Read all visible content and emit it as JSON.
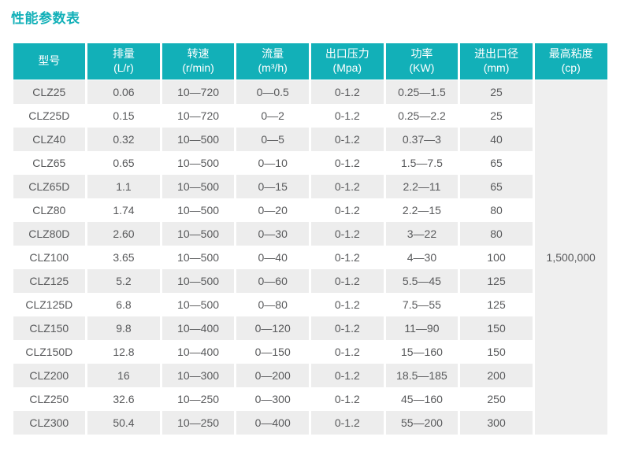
{
  "page": {
    "title": "性能参数表"
  },
  "colors": {
    "accent": "#12b0b8",
    "header_text": "#ffffff",
    "stripe": "#ededed",
    "merged_cell_bg": "#efefef",
    "body_text": "#58595b"
  },
  "table": {
    "columns": [
      {
        "label": "型号",
        "sub": ""
      },
      {
        "label": "排量",
        "sub": "(L/r)"
      },
      {
        "label": "转速",
        "sub": "(r/min)"
      },
      {
        "label": "流量",
        "sub": "(m³/h)"
      },
      {
        "label": "出口压力",
        "sub": "(Mpa)"
      },
      {
        "label": "功率",
        "sub": "(KW)"
      },
      {
        "label": "进出口径",
        "sub": "(mm)"
      },
      {
        "label": "最高粘度",
        "sub": "(cp)"
      }
    ],
    "rows": [
      [
        "CLZ25",
        "0.06",
        "10—720",
        "0—0.5",
        "0-1.2",
        "0.25—1.5",
        "25"
      ],
      [
        "CLZ25D",
        "0.15",
        "10—720",
        "0—2",
        "0-1.2",
        "0.25—2.2",
        "25"
      ],
      [
        "CLZ40",
        "0.32",
        "10—500",
        "0—5",
        "0-1.2",
        "0.37—3",
        "40"
      ],
      [
        "CLZ65",
        "0.65",
        "10—500",
        "0—10",
        "0-1.2",
        "1.5—7.5",
        "65"
      ],
      [
        "CLZ65D",
        "1.1",
        "10—500",
        "0—15",
        "0-1.2",
        "2.2—11",
        "65"
      ],
      [
        "CLZ80",
        "1.74",
        "10—500",
        "0—20",
        "0-1.2",
        "2.2—15",
        "80"
      ],
      [
        "CLZ80D",
        "2.60",
        "10—500",
        "0—30",
        "0-1.2",
        "3—22",
        "80"
      ],
      [
        "CLZ100",
        "3.65",
        "10—500",
        "0—40",
        "0-1.2",
        "4—30",
        "100"
      ],
      [
        "CLZ125",
        "5.2",
        "10—500",
        "0—60",
        "0-1.2",
        "5.5—45",
        "125"
      ],
      [
        "CLZ125D",
        "6.8",
        "10—500",
        "0—80",
        "0-1.2",
        "7.5—55",
        "125"
      ],
      [
        "CLZ150",
        "9.8",
        "10—400",
        "0—120",
        "0-1.2",
        "11—90",
        "150"
      ],
      [
        "CLZ150D",
        "12.8",
        "10—400",
        "0—150",
        "0-1.2",
        "15—160",
        "150"
      ],
      [
        "CLZ200",
        "16",
        "10—300",
        "0—200",
        "0-1.2",
        "18.5—185",
        "200"
      ],
      [
        "CLZ250",
        "32.6",
        "10—250",
        "0—300",
        "0-1.2",
        "45—160",
        "250"
      ],
      [
        "CLZ300",
        "50.4",
        "10—250",
        "0—400",
        "0-1.2",
        "55—200",
        "300"
      ]
    ],
    "merged_viscosity": "1,500,000"
  }
}
